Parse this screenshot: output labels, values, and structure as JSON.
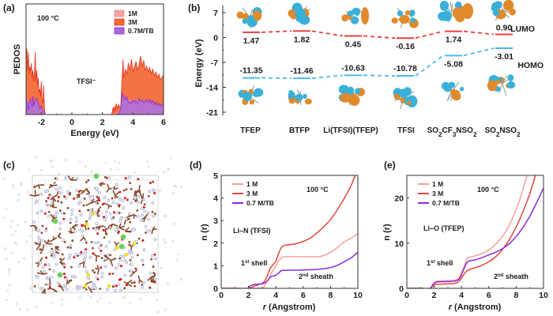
{
  "figure": {
    "panels": [
      "(a)",
      "(b)",
      "(c)",
      "(d)",
      "(e)"
    ]
  },
  "chart_data": [
    {
      "id": "a",
      "type": "area",
      "panel_label": "(a)",
      "title": "",
      "annotation_temp": "100 °C",
      "annotation_species": "TFSI⁻",
      "xlabel": "Energy (eV)",
      "ylabel": "PEDOS",
      "xlim": [
        -3,
        6
      ],
      "xticks": [
        -2,
        0,
        2,
        4,
        6
      ],
      "yticks_shown": false,
      "legend_position": "top-right",
      "series": [
        {
          "name": "1M",
          "color": "#f4a6a0",
          "x": [
            -3.0,
            -2.9,
            -2.8,
            -2.7,
            -2.6,
            -2.5,
            -2.4,
            -2.3,
            -2.2,
            -2.1,
            -2.0,
            -1.9,
            -1.8,
            -1.75,
            2.7,
            2.8,
            2.9,
            3.0,
            3.1,
            3.2,
            3.3,
            3.4,
            3.5,
            3.6,
            3.7,
            3.8,
            3.9,
            4.0,
            4.1,
            4.2,
            4.3,
            4.4,
            4.5,
            4.6,
            4.7,
            4.8,
            4.9,
            5.0,
            5.1,
            5.2,
            5.3,
            5.4,
            5.5,
            5.6,
            5.7,
            5.8,
            5.9,
            6.0
          ],
          "y": [
            0.15,
            0.22,
            0.12,
            0.2,
            0.18,
            0.1,
            0.2,
            0.17,
            0.14,
            0.08,
            0.1,
            0.04,
            0.02,
            0,
            0,
            0.02,
            0.01,
            0.03,
            0.05,
            0.08,
            0.25,
            0.22,
            0.2,
            0.24,
            0.18,
            0.2,
            0.16,
            0.22,
            0.18,
            0.17,
            0.2,
            0.16,
            0.18,
            0.2,
            0.15,
            0.17,
            0.16,
            0.18,
            0.14,
            0.15,
            0.12,
            0.14,
            0.11,
            0.1,
            0.12,
            0.1,
            0.11,
            0.13
          ]
        },
        {
          "name": "3M",
          "color": "#f26b3a",
          "x": [
            -3.0,
            -2.95,
            -2.9,
            -2.85,
            -2.8,
            -2.75,
            -2.7,
            -2.65,
            -2.6,
            -2.55,
            -2.5,
            -2.45,
            -2.4,
            -2.35,
            -2.3,
            -2.25,
            -2.2,
            -2.15,
            -2.1,
            -2.05,
            -2.0,
            -1.95,
            -1.9,
            -1.85,
            -1.8,
            -1.75,
            2.6,
            2.7,
            2.75,
            2.8,
            2.85,
            2.9,
            3.0,
            3.05,
            3.1,
            3.2,
            3.3,
            3.35,
            3.4,
            3.5,
            3.6,
            3.7,
            3.8,
            3.9,
            4.0,
            4.1,
            4.2,
            4.3,
            4.4,
            4.5,
            4.6,
            4.7,
            4.8,
            4.9,
            5.0,
            5.1,
            5.2,
            5.3,
            5.4,
            5.5,
            5.6,
            5.7,
            5.8,
            5.9,
            6.0
          ],
          "y": [
            0.7,
            0.9,
            0.6,
            0.85,
            0.55,
            0.65,
            0.6,
            0.7,
            0.5,
            0.6,
            0.45,
            0.55,
            0.85,
            0.45,
            0.6,
            0.4,
            0.5,
            0.3,
            0.35,
            0.25,
            0.45,
            0.2,
            0.15,
            0.4,
            0.1,
            0,
            0,
            0.1,
            0.02,
            0.12,
            0.05,
            0.15,
            0.08,
            0.14,
            0.1,
            0.12,
            0.55,
            0.75,
            0.5,
            0.62,
            0.55,
            0.7,
            0.6,
            0.75,
            0.58,
            0.66,
            0.72,
            0.6,
            0.68,
            0.8,
            0.65,
            0.74,
            0.6,
            0.66,
            0.58,
            0.64,
            0.55,
            0.62,
            0.52,
            0.58,
            0.5,
            0.55,
            0.48,
            0.5,
            0.55
          ]
        },
        {
          "name": "0.7M/TB",
          "color": "#a868d6",
          "x": [
            -3.0,
            -2.9,
            -2.85,
            -2.8,
            -2.7,
            -2.6,
            -2.55,
            -2.5,
            -2.4,
            -2.3,
            -2.2,
            -2.1,
            -2.0,
            -1.9,
            -1.8,
            -1.75,
            3.0,
            3.1,
            3.2,
            3.3,
            3.4,
            3.5,
            3.6,
            3.7,
            3.8,
            3.9,
            4.0,
            4.1,
            4.2,
            4.3,
            4.4,
            4.5,
            4.6,
            4.7,
            4.8,
            4.9,
            5.0,
            5.1,
            5.2,
            5.3,
            5.4,
            5.5,
            5.6,
            5.7,
            5.8,
            5.9,
            6.0
          ],
          "y": [
            0.2,
            0.18,
            0.05,
            0.15,
            0.22,
            0.1,
            0.25,
            0.12,
            0.2,
            0.22,
            0.15,
            0.08,
            0.12,
            0.05,
            0.02,
            0,
            0,
            0.03,
            0.08,
            0.3,
            0.25,
            0.2,
            0.24,
            0.16,
            0.18,
            0.15,
            0.2,
            0.17,
            0.19,
            0.15,
            0.22,
            0.18,
            0.2,
            0.16,
            0.18,
            0.2,
            0.17,
            0.21,
            0.16,
            0.19,
            0.14,
            0.17,
            0.13,
            0.15,
            0.12,
            0.14,
            0.15
          ]
        }
      ]
    },
    {
      "id": "b",
      "type": "scatter",
      "panel_label": "(b)",
      "title": "",
      "xlabel": "",
      "ylabel": "Energy (eV)",
      "ylim": [
        -21,
        7
      ],
      "yticks": [
        7,
        0,
        -7,
        -14,
        -21
      ],
      "categories": [
        "TFEP",
        "BTFP",
        "Li(TFSI)(TFEP)",
        "TFSI",
        "SO2CF3NSO2",
        "SO2NSO2"
      ],
      "category_labels_rich": [
        [
          {
            "t": "TFEP"
          }
        ],
        [
          {
            "t": "BTFP"
          }
        ],
        [
          {
            "t": "Li(TFSI)(TFEP)"
          }
        ],
        [
          {
            "t": "TFSI"
          }
        ],
        [
          {
            "t": "SO"
          },
          {
            "t": "2",
            "sub": true
          },
          {
            "t": "CF"
          },
          {
            "t": "3",
            "sub": true
          },
          {
            "t": "NSO"
          },
          {
            "t": "2",
            "sub": true
          }
        ],
        [
          {
            "t": "SO"
          },
          {
            "t": "2",
            "sub": true
          },
          {
            "t": "NSO"
          },
          {
            "t": "2",
            "sub": true
          }
        ]
      ],
      "series": [
        {
          "name": "LUMO",
          "color": "#e8413c",
          "values": [
            1.47,
            1.82,
            0.45,
            -0.16,
            1.74,
            0.9
          ],
          "labels": [
            "1.47",
            "1.82",
            "0.45",
            "-0.16",
            "1.74",
            "0.90"
          ]
        },
        {
          "name": "HOMO",
          "color": "#4db7ec",
          "values": [
            -11.35,
            -11.46,
            -10.63,
            -10.78,
            -5.08,
            -3.01
          ],
          "labels": [
            "-11.35",
            "-11.46",
            "-10.63",
            "-10.78",
            "-5.08",
            "-3.01"
          ]
        }
      ],
      "legend_position": "right",
      "orbital_colors": {
        "lobe_a": "#e08a2c",
        "lobe_b": "#3ab0d8"
      }
    },
    {
      "id": "c",
      "type": "other",
      "panel_label": "(c)",
      "description": "MD simulation snapshot",
      "atom_colors": {
        "C": "#8b4a2b",
        "O": "#e0141e",
        "F": "#aab4d6",
        "H": "#f0dede",
        "Li": "#6ccf5a",
        "S": "#f2e02a"
      }
    },
    {
      "id": "d",
      "type": "line",
      "panel_label": "(d)",
      "title": "",
      "annotation_temp": "100 °C",
      "annotation_pair": "Li–N (TFSI)",
      "annotation_shell1": {
        "main": "1",
        "sup": "st",
        "rest": " shell"
      },
      "annotation_shell2": {
        "main": "2",
        "sup": "nd",
        "rest": " sheath"
      },
      "xlabel_italic": "r",
      "xlabel_rest": " (Angstrom)",
      "ylabel": "n (r)",
      "xlim": [
        0,
        10
      ],
      "ylim": [
        0,
        5
      ],
      "xticks": [
        0,
        2,
        4,
        6,
        8,
        10
      ],
      "yticks": [
        0,
        1,
        2,
        3,
        4,
        5
      ],
      "legend_position": "top-left",
      "series": [
        {
          "name": "1 M",
          "color": "#f4a29a",
          "x": [
            0,
            1,
            2,
            3,
            3.2,
            3.5,
            3.8,
            4.0,
            4.2,
            4.5,
            5,
            6,
            7,
            7.5,
            8,
            8.5,
            9,
            9.5,
            10
          ],
          "y": [
            0,
            0,
            0,
            0.02,
            0.15,
            0.45,
            0.8,
            1.0,
            1.2,
            1.38,
            1.4,
            1.4,
            1.4,
            1.45,
            1.6,
            1.8,
            2.05,
            2.22,
            2.42
          ]
        },
        {
          "name": "3 M",
          "color": "#e5453a",
          "x": [
            0,
            1,
            2,
            2.5,
            3,
            3.2,
            3.4,
            3.6,
            3.8,
            4.0,
            4.2,
            4.4,
            4.6,
            5,
            5.5,
            6,
            6.5,
            7,
            7.5,
            8,
            8.5,
            9,
            9.5,
            9.8
          ],
          "y": [
            0,
            0,
            0,
            0.12,
            0.22,
            0.35,
            0.6,
            0.9,
            1.05,
            1.2,
            1.55,
            1.8,
            1.9,
            1.93,
            1.98,
            2.08,
            2.22,
            2.45,
            2.72,
            3.05,
            3.48,
            3.98,
            4.55,
            5.0
          ]
        },
        {
          "name": "0.7 M/TB",
          "color": "#8a2be2",
          "x": [
            0,
            1,
            1.9,
            2.1,
            2.4,
            3.0,
            3.2,
            3.4,
            3.6,
            3.8,
            4.0,
            4.2,
            4.4,
            4.6,
            5,
            6,
            7,
            7.5,
            8,
            8.5,
            9,
            9.5,
            10
          ],
          "y": [
            0,
            0,
            0,
            0.1,
            0.17,
            0.2,
            0.25,
            0.35,
            0.5,
            0.55,
            0.58,
            0.68,
            0.78,
            0.8,
            0.8,
            0.81,
            0.84,
            0.87,
            0.92,
            1.02,
            1.18,
            1.35,
            1.6
          ]
        }
      ]
    },
    {
      "id": "e",
      "type": "line",
      "panel_label": "(e)",
      "title": "",
      "annotation_temp": "100 °C",
      "annotation_pair": "Li–O (TFEP)",
      "annotation_shell1": {
        "main": "1",
        "sup": "st",
        "rest": " shell"
      },
      "annotation_shell2": {
        "main": "2",
        "sup": "nd",
        "rest": " sheath"
      },
      "xlabel_italic": "r",
      "xlabel_rest": " (Angstrom)",
      "ylabel": "n (r)",
      "xlim": [
        0,
        10
      ],
      "ylim": [
        0,
        25
      ],
      "xticks": [
        0,
        2,
        4,
        6,
        8,
        10
      ],
      "yticks": [
        0,
        10,
        20
      ],
      "legend_position": "top-left",
      "series": [
        {
          "name": "1 M",
          "color": "#f4a29a",
          "x": [
            0,
            1,
            1.7,
            1.9,
            2.2,
            3,
            3.5,
            3.8,
            4.0,
            4.2,
            4.4,
            4.6,
            5,
            5.5,
            6,
            6.5,
            7,
            7.5,
            8,
            8.3,
            8.6,
            8.8
          ],
          "y": [
            0,
            0,
            0,
            0.9,
            1.6,
            1.7,
            1.8,
            2.3,
            3.5,
            5.0,
            6.5,
            6.9,
            7.2,
            7.7,
            8.5,
            9.8,
            11.5,
            14.0,
            17.5,
            20.0,
            23.0,
            25.0
          ]
        },
        {
          "name": "3 M",
          "color": "#e5453a",
          "x": [
            0,
            1,
            1.7,
            1.9,
            2.2,
            3,
            3.5,
            3.8,
            4.0,
            4.2,
            4.4,
            4.6,
            5,
            5.5,
            6,
            6.5,
            7,
            7.5,
            8,
            8.5,
            9,
            9.4
          ],
          "y": [
            0,
            0,
            0,
            0.5,
            0.9,
            1.0,
            1.1,
            1.5,
            2.3,
            3.2,
            3.9,
            4.2,
            4.6,
            5.1,
            5.9,
            7.0,
            8.6,
            10.8,
            13.6,
            17.0,
            21.0,
            25.0
          ]
        },
        {
          "name": "0.7 M/TB",
          "color": "#8a2be2",
          "x": [
            0,
            1,
            1.7,
            1.9,
            2.2,
            3,
            3.5,
            3.8,
            4.0,
            4.2,
            4.4,
            4.6,
            5,
            5.5,
            6,
            6.5,
            7,
            7.5,
            8,
            8.5,
            9,
            9.5,
            10
          ],
          "y": [
            0,
            0,
            0,
            0.8,
            1.4,
            1.5,
            1.6,
            2.0,
            3.0,
            4.5,
            5.7,
            6.1,
            6.3,
            6.8,
            7.4,
            8.0,
            8.8,
            9.9,
            11.5,
            13.5,
            16.0,
            19.0,
            22.2
          ]
        }
      ]
    }
  ]
}
